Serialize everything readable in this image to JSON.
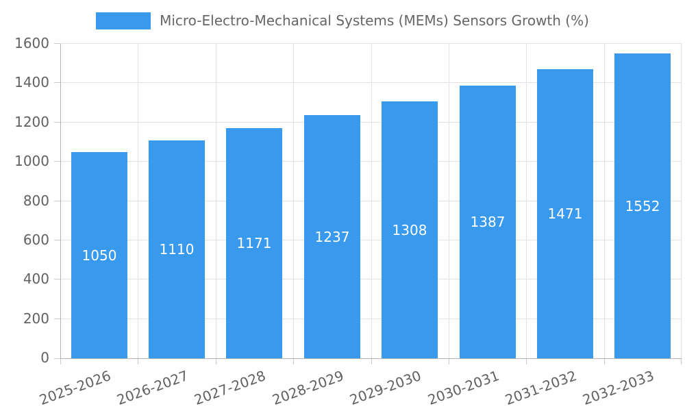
{
  "legend": {
    "position": "top",
    "swatch_icon": "legend-color-swatch"
  },
  "colors": {
    "bar": "#3999EC",
    "grid": "#E2E2E2",
    "axis_line": "#B3B3B3",
    "tick": "#C9C9C9",
    "text": "#616161",
    "legend_text": "#666666",
    "bar_label": "#FFFFFF",
    "background": "#FFFFFF"
  },
  "chart_data": {
    "type": "bar",
    "title": "Micro-Electro-Mechanical Systems (MEMs) Sensors Growth (%)",
    "categories": [
      "2025-2026",
      "2026-2027",
      "2027-2028",
      "2028-2029",
      "2029-2030",
      "2030-2031",
      "2031-2032",
      "2032-2033"
    ],
    "values": [
      1050,
      1110,
      1171,
      1237,
      1308,
      1387,
      1471,
      1552
    ],
    "xlabel": "",
    "ylabel": "",
    "ylim": [
      0,
      1600
    ],
    "ytick_step": 200,
    "ytick_labels": [
      "0",
      "200",
      "400",
      "600",
      "800",
      "1000",
      "1200",
      "1400",
      "1600"
    ],
    "grid": "on",
    "legend_position": "top",
    "bar_value_labels": "inside-center",
    "x_label_rotation_deg": -20
  }
}
